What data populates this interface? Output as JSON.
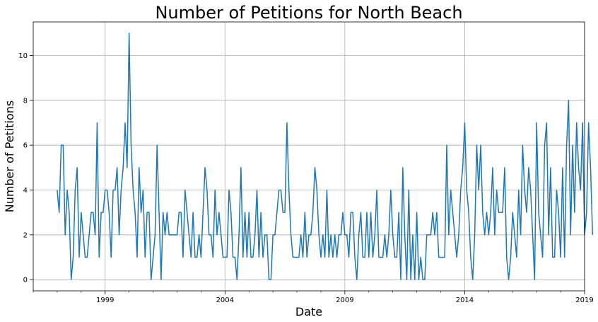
{
  "chart_data": {
    "type": "line",
    "title": "Number of Petitions for North Beach",
    "xlabel": "Date",
    "ylabel": "Number of Petitions",
    "x_range": [
      1996.0,
      2019.0
    ],
    "xlim_dates": [
      "1996-01",
      "2019-01"
    ],
    "ylim": [
      -0.5,
      11.5
    ],
    "grid": true,
    "x_ticks": [
      "1999",
      "2004",
      "2009",
      "2014",
      "2019"
    ],
    "y_ticks": [
      "0",
      "2",
      "4",
      "6",
      "8",
      "10"
    ],
    "series": [
      {
        "color": "#1f77b4",
        "start": "1997-01",
        "frequency": "monthly",
        "values": [
          4,
          3,
          6,
          6,
          2,
          4,
          3,
          0,
          1,
          4,
          5,
          1,
          3,
          2,
          1,
          1,
          2,
          3,
          3,
          2,
          7,
          1,
          3,
          3,
          4,
          4,
          3,
          1,
          4,
          4,
          5,
          2,
          4,
          5,
          7,
          5,
          11,
          6,
          4,
          3,
          1,
          5,
          3,
          4,
          1,
          3,
          3,
          0,
          1,
          2,
          6,
          3,
          0,
          3,
          2,
          3,
          2,
          2,
          2,
          2,
          2,
          3,
          3,
          1,
          4,
          3,
          2,
          1,
          3,
          1,
          1,
          2,
          1,
          3,
          5,
          4,
          2,
          2,
          1,
          4,
          2,
          3,
          2,
          1,
          1,
          1,
          4,
          3,
          1,
          1,
          0,
          2,
          5,
          1,
          3,
          1,
          3,
          1,
          1,
          2,
          4,
          1,
          3,
          1,
          2,
          2,
          0,
          0,
          2,
          2,
          3,
          4,
          4,
          3,
          3,
          7,
          4,
          2,
          1,
          1,
          1,
          1,
          2,
          1,
          3,
          1,
          2,
          2,
          3,
          5,
          4,
          2,
          1,
          2,
          1,
          4,
          1,
          2,
          1,
          2,
          1,
          2,
          2,
          3,
          2,
          2,
          1,
          3,
          3,
          1,
          0,
          2,
          3,
          1,
          1,
          3,
          1,
          3,
          1,
          2,
          4,
          1,
          1,
          1,
          2,
          1,
          2,
          4,
          2,
          1,
          1,
          3,
          0,
          5,
          2,
          0,
          4,
          0,
          2,
          0,
          3,
          0,
          1,
          0,
          0,
          2,
          2,
          2,
          3,
          2,
          3,
          1,
          1,
          1,
          1,
          6,
          2,
          4,
          3,
          2,
          1,
          2,
          4,
          5,
          7,
          4,
          3,
          1,
          0,
          2,
          6,
          4,
          6,
          3,
          2,
          3,
          2,
          3,
          5,
          2,
          4,
          3,
          3,
          3,
          5,
          1,
          0,
          1,
          3,
          2,
          1,
          4,
          2,
          6,
          4,
          3,
          5,
          4,
          2,
          0,
          7,
          3,
          2,
          1,
          6,
          7,
          2,
          5,
          1,
          1,
          4,
          3,
          1,
          5,
          1,
          6,
          8,
          2,
          6,
          3,
          7,
          5,
          4,
          7,
          2,
          3,
          7,
          5,
          2
        ]
      }
    ]
  }
}
